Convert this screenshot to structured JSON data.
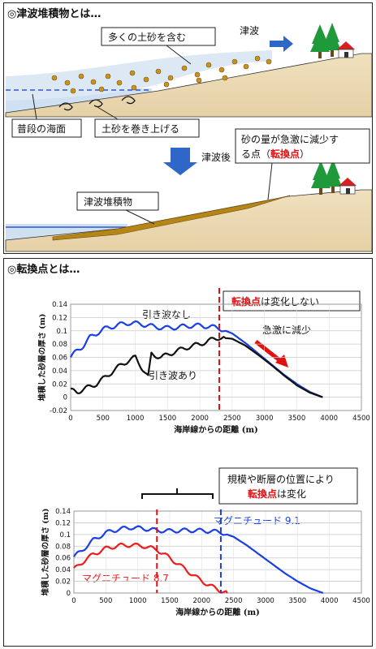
{
  "panel1": {
    "title": "◎津波堆積物とは…",
    "labels": {
      "sediment_rich": "多くの土砂を含む",
      "tsunami": "津波",
      "normal_sea": "普段の海面",
      "stir_up": "土砂を巻き上げる",
      "after_tsunami": "津波後",
      "deposit": "津波堆積物",
      "turn_point_line1": "砂の量が急激に減少す",
      "turn_point_line2a": "る点（",
      "turn_point_red": "転換点",
      "turn_point_line2b": "）"
    }
  },
  "panel2": {
    "title": "◎転換点とは…",
    "callout1_red": "転換点",
    "callout1_rest": "は変化しない",
    "label_no_backwash": "引き波なし",
    "label_backwash": "引き波あり",
    "label_sharp_drop": "急激に減少",
    "callout2_line1": "規模や断層の位置により",
    "callout2_red": "転換点",
    "callout2_rest": "は変化",
    "label_m91": "マグニチュード 9.1",
    "label_m87": "マグニチュード 8.7",
    "colors": {
      "blue": "#1a3fe6",
      "black": "#111111",
      "red": "#ee1c1c"
    }
  },
  "chart_data": [
    {
      "type": "line",
      "xlabel": "海岸線からの距離 (m)",
      "ylabel": "堆積した砂層の厚さ (m)",
      "xlim": [
        0,
        4500
      ],
      "ylim": [
        -0.02,
        0.14
      ],
      "x_ticks": [
        "0",
        "500",
        "1000",
        "1500",
        "2000",
        "2500",
        "3000",
        "3500",
        "4000",
        "4500"
      ],
      "y_ticks": [
        "-0.02",
        "0",
        "0.02",
        "0.04",
        "0.06",
        "0.08",
        "0.1",
        "0.12",
        "0.14"
      ],
      "grid": true,
      "vline_x": 2300,
      "series": [
        {
          "name": "引き波なし",
          "color": "#1a3fe6",
          "x": [
            0,
            100,
            200,
            300,
            500,
            700,
            900,
            1100,
            1300,
            1500,
            1700,
            1900,
            2100,
            2300,
            2500,
            2700,
            2900,
            3100,
            3300,
            3500,
            3700,
            3900
          ],
          "y": [
            0.06,
            0.07,
            0.078,
            0.09,
            0.102,
            0.108,
            0.112,
            0.11,
            0.106,
            0.104,
            0.106,
            0.108,
            0.107,
            0.104,
            0.096,
            0.082,
            0.066,
            0.05,
            0.034,
            0.02,
            0.008,
            0.0
          ]
        },
        {
          "name": "引き波あり",
          "color": "#111111",
          "x": [
            0,
            100,
            200,
            400,
            600,
            800,
            1000,
            1100,
            1200,
            1250,
            1400,
            1600,
            1800,
            2000,
            2200,
            2300,
            2500,
            2700,
            2900,
            3100,
            3300,
            3500,
            3700,
            3900
          ],
          "y": [
            0.01,
            0.008,
            0.012,
            0.02,
            0.035,
            0.05,
            0.06,
            0.045,
            0.03,
            0.065,
            0.06,
            0.068,
            0.075,
            0.08,
            0.087,
            0.09,
            0.088,
            0.078,
            0.064,
            0.049,
            0.033,
            0.018,
            0.007,
            0.0
          ]
        }
      ]
    },
    {
      "type": "line",
      "xlabel": "海岸線からの距離 (m)",
      "ylabel": "堆積した砂層の厚さ (m)",
      "xlim": [
        0,
        4500
      ],
      "ylim": [
        0,
        0.14
      ],
      "x_ticks": [
        "0",
        "500",
        "1000",
        "1500",
        "2000",
        "2500",
        "3000",
        "3500",
        "4000",
        "4500"
      ],
      "y_ticks": [
        "0",
        "0.02",
        "0.04",
        "0.06",
        "0.08",
        "0.1",
        "0.12",
        "0.14"
      ],
      "grid": true,
      "vline_x": [
        1300,
        2300
      ],
      "series": [
        {
          "name": "マグニチュード 9.1",
          "color": "#1a3fe6",
          "x": [
            0,
            100,
            300,
            500,
            700,
            900,
            1100,
            1300,
            1500,
            1700,
            1900,
            2100,
            2300,
            2500,
            2700,
            2900,
            3100,
            3300,
            3500,
            3700,
            3900
          ],
          "y": [
            0.062,
            0.07,
            0.09,
            0.103,
            0.109,
            0.112,
            0.11,
            0.107,
            0.106,
            0.107,
            0.107,
            0.106,
            0.104,
            0.096,
            0.082,
            0.066,
            0.05,
            0.034,
            0.02,
            0.008,
            0.0
          ]
        },
        {
          "name": "マグニチュード 8.7",
          "color": "#ee1c1c",
          "x": [
            0,
            100,
            300,
            500,
            700,
            900,
            1100,
            1300,
            1500,
            1700,
            1900,
            2100,
            2300,
            2400
          ],
          "y": [
            0.04,
            0.05,
            0.066,
            0.076,
            0.081,
            0.082,
            0.08,
            0.074,
            0.06,
            0.044,
            0.028,
            0.014,
            0.004,
            0.0
          ]
        }
      ]
    }
  ]
}
